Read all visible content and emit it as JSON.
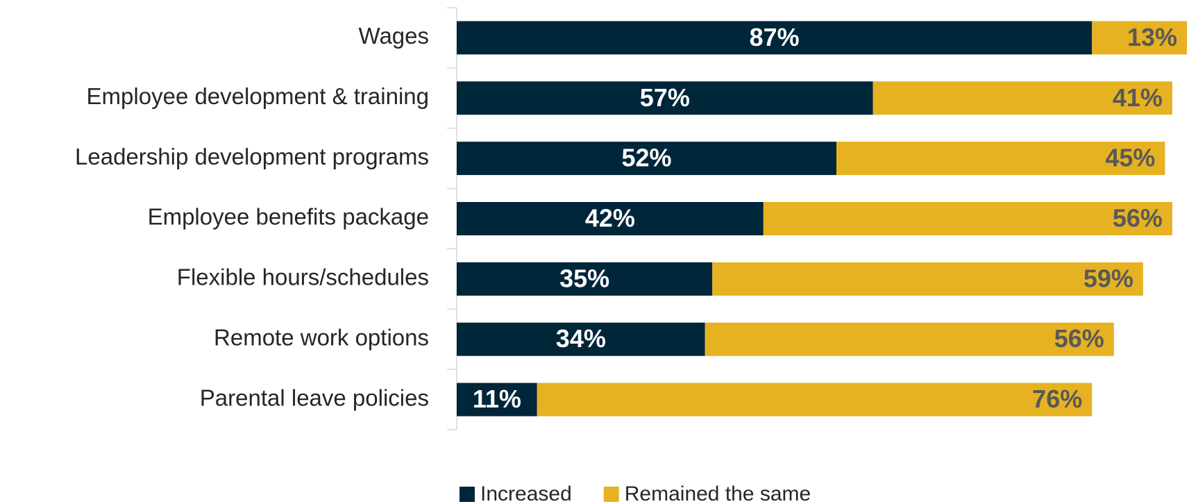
{
  "chart_data": {
    "type": "stacked-bar",
    "orientation": "horizontal",
    "categories": [
      "Wages",
      "Employee development & training",
      "Leadership development programs",
      "Employee benefits package",
      "Flexible hours/schedules",
      "Remote work options",
      "Parental leave policies"
    ],
    "series": [
      {
        "name": "Increased",
        "color": "#00263a",
        "values": [
          87,
          57,
          52,
          42,
          35,
          34,
          11
        ],
        "value_labels": [
          "87%",
          "57%",
          "52%",
          "42%",
          "35%",
          "34%",
          "11%"
        ]
      },
      {
        "name": "Remained the same",
        "color": "#e6b222",
        "values": [
          13,
          41,
          45,
          56,
          59,
          56,
          76
        ],
        "value_labels": [
          "13%",
          "41%",
          "45%",
          "56%",
          "59%",
          "56%",
          "76%"
        ]
      }
    ],
    "xlim": [
      0,
      100
    ],
    "legend": "bottom"
  }
}
